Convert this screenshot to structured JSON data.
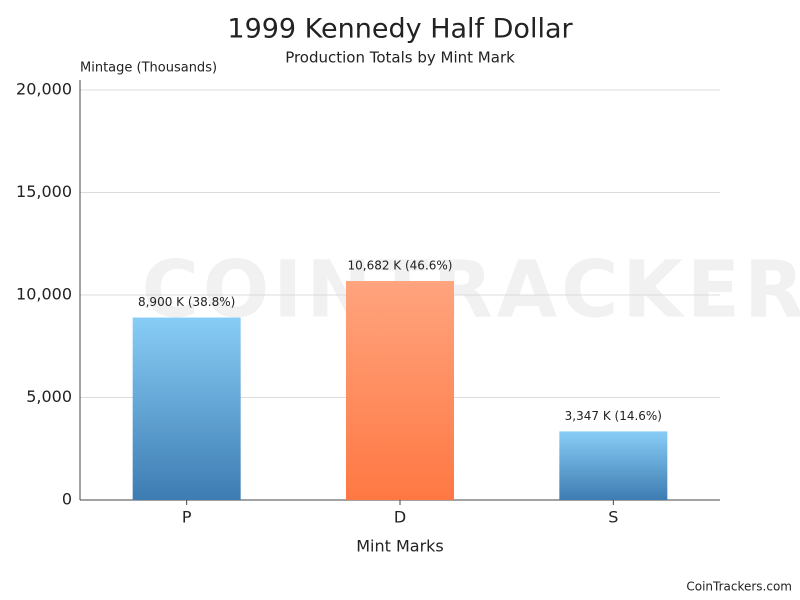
{
  "chart_data": {
    "type": "bar",
    "title": "1999 Kennedy Half Dollar",
    "subtitle": "Production Totals by Mint Mark",
    "y_label": "Mintage (Thousands)",
    "x_label": "Mint Marks",
    "credit": "CoinTrackers.com",
    "watermark": "COINTRACKERS",
    "categories": [
      "P",
      "D",
      "S"
    ],
    "values": [
      8900,
      10682,
      3347
    ],
    "value_labels": [
      "8,900 K (38.8%)",
      "10,682 K (46.6%)",
      "3,347 K (14.6%)"
    ],
    "colors": [
      [
        "#88cdf6",
        "#3d7cb2"
      ],
      [
        "#ffa47e",
        "#ff7843"
      ],
      [
        "#88cdf6",
        "#3d7cb2"
      ]
    ],
    "ylim": [
      0,
      20000
    ],
    "yticks": [
      0,
      {
        "value": 5000,
        "label": "5,000"
      },
      {
        "value": 10000,
        "label": "10,000"
      },
      {
        "value": 15000,
        "label": "15,000"
      },
      {
        "value": 20000,
        "label": "20,000"
      }
    ],
    "grid": true
  }
}
